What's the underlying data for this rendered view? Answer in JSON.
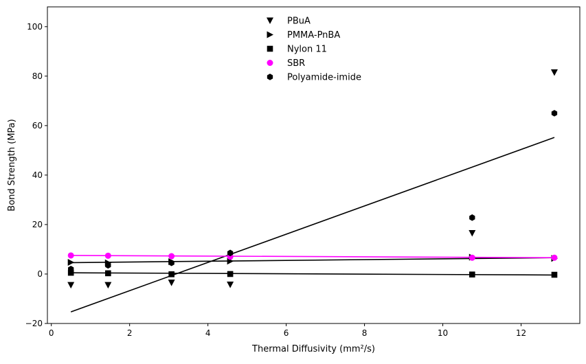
{
  "chart_data": {
    "type": "scatter",
    "xlabel": "Thermal Diffusivity (mm²/s)",
    "ylabel": "Bond Strength (MPa)",
    "xlim": [
      -0.1,
      13.5
    ],
    "ylim": [
      -20,
      108
    ],
    "xticks": [
      0,
      2,
      4,
      6,
      8,
      10,
      12
    ],
    "yticks": [
      -20,
      0,
      20,
      40,
      60,
      80,
      100
    ],
    "xtick_labels": [
      "0",
      "2",
      "4",
      "6",
      "8",
      "10",
      "12"
    ],
    "ytick_labels": [
      "−20",
      "0",
      "20",
      "40",
      "60",
      "80",
      "100"
    ],
    "grid": false,
    "legend_position": "top-center",
    "series": [
      {
        "name": "PBuA",
        "marker": "triangle-down",
        "color": "#000000",
        "x": [
          0.5,
          1.45,
          3.07,
          4.57,
          10.75,
          12.85
        ],
        "y": [
          -4.5,
          -4.5,
          -3.5,
          -4.3,
          16.5,
          81.5
        ]
      },
      {
        "name": "PMMA-PnBA",
        "marker": "triangle-right",
        "color": "#000000",
        "x": [
          0.5,
          1.45,
          3.07,
          4.57,
          10.75,
          12.85
        ],
        "y": [
          4.7,
          4.5,
          5.0,
          5.2,
          6.8,
          6.3
        ]
      },
      {
        "name": "Nylon 11",
        "marker": "square",
        "color": "#000000",
        "x": [
          0.5,
          1.45,
          3.07,
          4.57,
          10.75,
          12.85
        ],
        "y": [
          0.5,
          0.3,
          -0.1,
          0.0,
          -0.2,
          -0.3
        ]
      },
      {
        "name": "SBR",
        "marker": "circle",
        "color": "#ff00ff",
        "x": [
          0.5,
          1.45,
          3.07,
          4.57,
          10.75,
          12.85
        ],
        "y": [
          7.5,
          7.4,
          7.2,
          7.0,
          6.6,
          6.6
        ]
      },
      {
        "name": "Polyamide-imide",
        "marker": "hexagon",
        "color": "#000000",
        "x": [
          0.5,
          1.45,
          3.07,
          4.57,
          10.75,
          12.85
        ],
        "y": [
          2.0,
          3.5,
          4.5,
          8.5,
          22.8,
          65.0
        ]
      }
    ],
    "fit_lines": [
      {
        "color": "#000000",
        "x": [
          0.5,
          12.85
        ],
        "y": [
          -15.3,
          55.2
        ]
      },
      {
        "color": "#000000",
        "x": [
          0.5,
          12.85
        ],
        "y": [
          4.6,
          6.6
        ]
      },
      {
        "color": "#000000",
        "x": [
          0.5,
          12.85
        ],
        "y": [
          0.5,
          -0.4
        ]
      },
      {
        "color": "#ff00ff",
        "x": [
          0.5,
          12.85
        ],
        "y": [
          7.5,
          6.6
        ]
      }
    ]
  }
}
